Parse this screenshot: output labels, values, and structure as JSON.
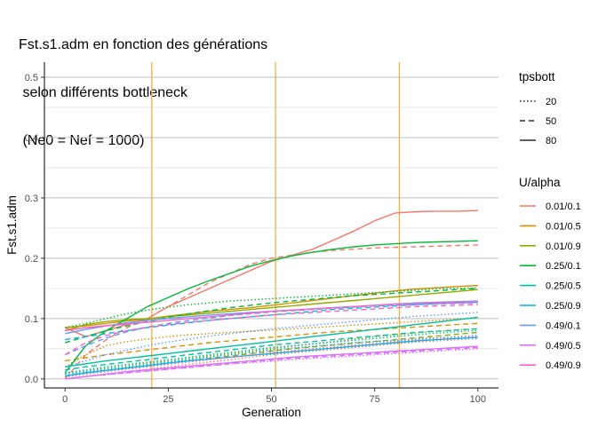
{
  "chart_data": {
    "type": "line",
    "title_lines": [
      "Fst.s1.adm en fonction des générations",
      " selon différents bottleneck",
      " (Ne0 = Nef = 1000)"
    ],
    "xlabel": "Generation",
    "ylabel": "Fst.s1.adm",
    "xlim": [
      -5,
      105
    ],
    "ylim": [
      -0.015,
      0.525
    ],
    "x_ticks": [
      0,
      25,
      50,
      75,
      100
    ],
    "x_tick_labels": [
      "0",
      "25",
      "50",
      "75",
      "100"
    ],
    "y_ticks": [
      0.0,
      0.1,
      0.2,
      0.3,
      0.4,
      0.5
    ],
    "y_tick_labels": [
      "0.0",
      "0.1",
      "0.2",
      "0.3",
      "0.4",
      "0.5"
    ],
    "grid": "horizontal",
    "vlines": {
      "x": [
        21,
        51,
        81
      ],
      "color": "#F5B041"
    },
    "legend_linetype": {
      "title": "tpsbott",
      "items": [
        {
          "label": "20",
          "dash": "dotted"
        },
        {
          "label": "50",
          "dash": "dashed"
        },
        {
          "label": "80",
          "dash": "solid"
        }
      ]
    },
    "legend_color": {
      "title": "U/alpha",
      "items": [
        {
          "label": "0.01/0.1",
          "color": "#F8766D"
        },
        {
          "label": "0.01/0.5",
          "color": "#D39200"
        },
        {
          "label": "0.01/0.9",
          "color": "#93AA00"
        },
        {
          "label": "0.25/0.1",
          "color": "#00BA38"
        },
        {
          "label": "0.25/0.5",
          "color": "#00C19F"
        },
        {
          "label": "0.25/0.9",
          "color": "#00B9E3"
        },
        {
          "label": "0.49/0.1",
          "color": "#619CFF"
        },
        {
          "label": "0.49/0.5",
          "color": "#DB72FB"
        },
        {
          "label": "0.49/0.9",
          "color": "#FF61C3"
        }
      ]
    },
    "x": [
      0,
      5,
      10,
      15,
      20,
      25,
      30,
      35,
      40,
      45,
      50,
      55,
      60,
      65,
      70,
      75,
      80,
      85,
      90,
      95,
      100
    ],
    "series": [
      {
        "name": "0.01/0.1 - 80",
        "group": "0.01/0.1",
        "tpsbott": "80",
        "values": [
          0.085,
          0.07,
          0.08,
          0.09,
          0.1,
          0.12,
          0.135,
          0.15,
          0.165,
          0.18,
          0.195,
          0.205,
          0.215,
          0.23,
          0.245,
          0.262,
          0.275,
          0.277,
          0.278,
          0.278,
          0.279
        ]
      },
      {
        "name": "0.01/0.1 - 50",
        "group": "0.01/0.1",
        "tpsbott": "50",
        "values": [
          0.0,
          0.04,
          0.065,
          0.085,
          0.1,
          0.12,
          0.14,
          0.16,
          0.175,
          0.19,
          0.2,
          0.205,
          0.21,
          0.213,
          0.215,
          0.217,
          0.218,
          0.219,
          0.22,
          0.221,
          0.222
        ]
      },
      {
        "name": "0.01/0.1 - 20",
        "group": "0.01/0.1",
        "tpsbott": "20",
        "values": [
          0.0,
          0.004,
          0.008,
          0.012,
          0.016,
          0.02,
          0.024,
          0.028,
          0.032,
          0.036,
          0.04,
          0.043,
          0.046,
          0.049,
          0.052,
          0.055,
          0.058,
          0.061,
          0.063,
          0.065,
          0.067
        ]
      },
      {
        "name": "0.01/0.5 - 80",
        "group": "0.01/0.5",
        "tpsbott": "80",
        "values": [
          0.085,
          0.088,
          0.092,
          0.096,
          0.099,
          0.104,
          0.108,
          0.112,
          0.115,
          0.118,
          0.122,
          0.126,
          0.13,
          0.134,
          0.138,
          0.142,
          0.146,
          0.149,
          0.151,
          0.153,
          0.155
        ]
      },
      {
        "name": "0.01/0.5 - 50",
        "group": "0.01/0.5",
        "tpsbott": "50",
        "values": [
          0.03,
          0.035,
          0.04,
          0.044,
          0.048,
          0.052,
          0.056,
          0.06,
          0.063,
          0.066,
          0.069,
          0.072,
          0.075,
          0.078,
          0.08,
          0.082,
          0.084,
          0.086,
          0.088,
          0.09,
          0.092
        ]
      },
      {
        "name": "0.01/0.5 - 20",
        "group": "0.01/0.5",
        "tpsbott": "20",
        "values": [
          0.02,
          0.04,
          0.055,
          0.062,
          0.066,
          0.07,
          0.073,
          0.075,
          0.077,
          0.079,
          0.081,
          0.083,
          0.085,
          0.087,
          0.089,
          0.091,
          0.093,
          0.095,
          0.097,
          0.099,
          0.101
        ]
      },
      {
        "name": "0.01/0.9 - 80",
        "group": "0.01/0.9",
        "tpsbott": "80",
        "values": [
          0.08,
          0.09,
          0.095,
          0.098,
          0.1,
          0.103,
          0.106,
          0.109,
          0.112,
          0.115,
          0.118,
          0.121,
          0.124,
          0.127,
          0.13,
          0.133,
          0.136,
          0.139,
          0.142,
          0.145,
          0.148
        ]
      },
      {
        "name": "0.01/0.9 - 50",
        "group": "0.01/0.9",
        "tpsbott": "50",
        "values": [
          0.005,
          0.01,
          0.014,
          0.018,
          0.022,
          0.026,
          0.03,
          0.034,
          0.038,
          0.042,
          0.046,
          0.05,
          0.053,
          0.056,
          0.059,
          0.062,
          0.065,
          0.068,
          0.071,
          0.074,
          0.077
        ]
      },
      {
        "name": "0.01/0.9 - 20",
        "group": "0.01/0.9",
        "tpsbott": "20",
        "values": [
          0.01,
          0.014,
          0.018,
          0.022,
          0.026,
          0.03,
          0.034,
          0.038,
          0.042,
          0.046,
          0.05,
          0.054,
          0.058,
          0.062,
          0.066,
          0.07,
          0.073,
          0.076,
          0.079,
          0.081,
          0.083
        ]
      },
      {
        "name": "0.25/0.1 - 80",
        "group": "0.25/0.1",
        "tpsbott": "80",
        "values": [
          0.01,
          0.055,
          0.08,
          0.1,
          0.12,
          0.135,
          0.15,
          0.163,
          0.175,
          0.187,
          0.196,
          0.204,
          0.21,
          0.215,
          0.219,
          0.222,
          0.224,
          0.226,
          0.227,
          0.228,
          0.229
        ]
      },
      {
        "name": "0.25/0.1 - 50",
        "group": "0.25/0.1",
        "tpsbott": "50",
        "values": [
          0.06,
          0.07,
          0.08,
          0.088,
          0.095,
          0.102,
          0.108,
          0.113,
          0.118,
          0.122,
          0.126,
          0.129,
          0.132,
          0.135,
          0.138,
          0.14,
          0.142,
          0.144,
          0.146,
          0.148,
          0.15
        ]
      },
      {
        "name": "0.25/0.1 - 20",
        "group": "0.25/0.1",
        "tpsbott": "20",
        "values": [
          0.085,
          0.092,
          0.1,
          0.108,
          0.114,
          0.119,
          0.123,
          0.126,
          0.129,
          0.131,
          0.133,
          0.135,
          0.137,
          0.139,
          0.141,
          0.143,
          0.145,
          0.147,
          0.149,
          0.15,
          0.151
        ]
      },
      {
        "name": "0.25/0.5 - 80",
        "group": "0.25/0.5",
        "tpsbott": "80",
        "values": [
          0.02,
          0.025,
          0.03,
          0.034,
          0.038,
          0.042,
          0.046,
          0.05,
          0.054,
          0.058,
          0.062,
          0.066,
          0.07,
          0.074,
          0.078,
          0.082,
          0.086,
          0.09,
          0.094,
          0.098,
          0.102
        ]
      },
      {
        "name": "0.25/0.5 - 50",
        "group": "0.25/0.5",
        "tpsbott": "50",
        "values": [
          0.015,
          0.02,
          0.024,
          0.028,
          0.032,
          0.036,
          0.04,
          0.044,
          0.048,
          0.052,
          0.056,
          0.059,
          0.062,
          0.065,
          0.068,
          0.071,
          0.074,
          0.077,
          0.079,
          0.081,
          0.083
        ]
      },
      {
        "name": "0.25/0.5 - 20",
        "group": "0.25/0.5",
        "tpsbott": "20",
        "values": [
          0.01,
          0.015,
          0.02,
          0.024,
          0.028,
          0.032,
          0.036,
          0.04,
          0.044,
          0.048,
          0.052,
          0.055,
          0.058,
          0.061,
          0.064,
          0.067,
          0.07,
          0.073,
          0.076,
          0.078,
          0.08
        ]
      },
      {
        "name": "0.25/0.9 - 80",
        "group": "0.25/0.9",
        "tpsbott": "80",
        "values": [
          0.005,
          0.01,
          0.014,
          0.018,
          0.022,
          0.026,
          0.03,
          0.033,
          0.036,
          0.039,
          0.042,
          0.045,
          0.048,
          0.051,
          0.054,
          0.057,
          0.06,
          0.063,
          0.065,
          0.067,
          0.069
        ]
      },
      {
        "name": "0.25/0.9 - 50",
        "group": "0.25/0.9",
        "tpsbott": "50",
        "values": [
          0.065,
          0.07,
          0.075,
          0.08,
          0.085,
          0.089,
          0.093,
          0.097,
          0.1,
          0.103,
          0.106,
          0.109,
          0.112,
          0.115,
          0.117,
          0.119,
          0.121,
          0.123,
          0.125,
          0.126,
          0.127
        ]
      },
      {
        "name": "0.25/0.9 - 20",
        "group": "0.25/0.9",
        "tpsbott": "20",
        "values": [
          0.008,
          0.012,
          0.016,
          0.02,
          0.024,
          0.028,
          0.032,
          0.036,
          0.04,
          0.044,
          0.048,
          0.051,
          0.054,
          0.057,
          0.06,
          0.062,
          0.064,
          0.066,
          0.068,
          0.07,
          0.072
        ]
      },
      {
        "name": "0.49/0.1 - 80",
        "group": "0.49/0.1",
        "tpsbott": "80",
        "values": [
          0.075,
          0.082,
          0.088,
          0.093,
          0.097,
          0.1,
          0.103,
          0.106,
          0.108,
          0.11,
          0.112,
          0.114,
          0.116,
          0.118,
          0.12,
          0.122,
          0.124,
          0.126,
          0.127,
          0.128,
          0.129
        ]
      },
      {
        "name": "0.49/0.1 - 50",
        "group": "0.49/0.1",
        "tpsbott": "50",
        "values": [
          0.04,
          0.055,
          0.068,
          0.078,
          0.086,
          0.092,
          0.097,
          0.101,
          0.105,
          0.108,
          0.111,
          0.113,
          0.115,
          0.117,
          0.119,
          0.121,
          0.122,
          0.123,
          0.124,
          0.125,
          0.126
        ]
      },
      {
        "name": "0.49/0.1 - 20",
        "group": "0.49/0.1",
        "tpsbott": "20",
        "values": [
          0.02,
          0.03,
          0.04,
          0.048,
          0.055,
          0.061,
          0.066,
          0.071,
          0.075,
          0.079,
          0.083,
          0.086,
          0.089,
          0.092,
          0.095,
          0.098,
          0.101,
          0.104,
          0.106,
          0.108,
          0.11
        ]
      },
      {
        "name": "0.49/0.5 - 80",
        "group": "0.49/0.5",
        "tpsbott": "80",
        "values": [
          0.0,
          0.004,
          0.008,
          0.012,
          0.015,
          0.018,
          0.021,
          0.024,
          0.027,
          0.03,
          0.033,
          0.036,
          0.038,
          0.04,
          0.042,
          0.044,
          0.046,
          0.048,
          0.05,
          0.052,
          0.054
        ]
      },
      {
        "name": "0.49/0.5 - 50",
        "group": "0.49/0.5",
        "tpsbott": "50",
        "values": [
          0.0,
          0.004,
          0.007,
          0.01,
          0.013,
          0.016,
          0.019,
          0.022,
          0.025,
          0.028,
          0.031,
          0.034,
          0.036,
          0.038,
          0.04,
          0.042,
          0.044,
          0.046,
          0.048,
          0.05,
          0.052
        ]
      },
      {
        "name": "0.49/0.5 - 20",
        "group": "0.49/0.5",
        "tpsbott": "20",
        "values": [
          0.0,
          0.004,
          0.007,
          0.01,
          0.013,
          0.016,
          0.019,
          0.022,
          0.025,
          0.027,
          0.029,
          0.032,
          0.034,
          0.036,
          0.038,
          0.04,
          0.042,
          0.044,
          0.046,
          0.048,
          0.05
        ]
      },
      {
        "name": "0.49/0.9 - 80",
        "group": "0.49/0.9",
        "tpsbott": "80",
        "values": [
          0.08,
          0.085,
          0.088,
          0.091,
          0.094,
          0.097,
          0.1,
          0.103,
          0.106,
          0.109,
          0.112,
          0.114,
          0.116,
          0.118,
          0.12,
          0.122,
          0.124,
          0.125,
          0.126,
          0.127,
          0.128
        ]
      },
      {
        "name": "0.49/0.9 - 50",
        "group": "0.49/0.9",
        "tpsbott": "50",
        "values": [
          0.04,
          0.06,
          0.072,
          0.08,
          0.086,
          0.09,
          0.094,
          0.097,
          0.1,
          0.103,
          0.106,
          0.108,
          0.11,
          0.112,
          0.114,
          0.116,
          0.118,
          0.12,
          0.121,
          0.122,
          0.123
        ]
      },
      {
        "name": "0.49/0.9 - 20",
        "group": "0.49/0.9",
        "tpsbott": "20",
        "values": [
          0.003,
          0.008,
          0.012,
          0.016,
          0.02,
          0.024,
          0.028,
          0.032,
          0.036,
          0.04,
          0.044,
          0.047,
          0.05,
          0.053,
          0.056,
          0.059,
          0.062,
          0.065,
          0.067,
          0.069,
          0.071
        ]
      }
    ]
  }
}
